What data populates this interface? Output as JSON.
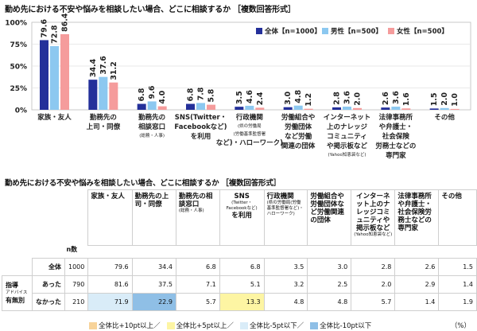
{
  "chart_data": {
    "type": "bar",
    "title": "勤め先における不安や悩みを相談したい場合、どこに相談するか ［複数回答形式］",
    "categories": [
      [
        "家族・友人"
      ],
      [
        "勤務先の",
        "上司・同僚"
      ],
      [
        "勤務先の",
        "相談窓口",
        "(総務・人事)"
      ],
      [
        "SNS(Twitter・",
        "Facebookなど)",
        "を利用"
      ],
      [
        "行政機関",
        "(県の労働局",
        "(労働基準監督署",
        "など)・ハローワーク)"
      ],
      [
        "労働組合や",
        "労働団体",
        "など労働",
        "関連の団体"
      ],
      [
        "インターネット",
        "上のナレッジ",
        "コミュニティ",
        "や掲示板など",
        "(Yahoo知恵袋など)"
      ],
      [
        "法律事務所",
        "や弁護士・",
        "社会保険",
        "労務士などの",
        "専門家"
      ],
      [
        "その他"
      ]
    ],
    "series": [
      {
        "name": "全体【n=1000】",
        "color": "#24309a",
        "values": [
          79.6,
          34.4,
          6.8,
          6.8,
          3.5,
          3.0,
          2.8,
          2.6,
          1.5
        ]
      },
      {
        "name": "男性【n=500】",
        "color": "#8cc8f0",
        "values": [
          72.8,
          37.6,
          9.6,
          7.8,
          4.6,
          4.8,
          3.6,
          3.6,
          2.0
        ]
      },
      {
        "name": "女性【n=500】",
        "color": "#f59c9c",
        "values": [
          86.4,
          31.2,
          4.0,
          5.8,
          2.4,
          1.2,
          2.0,
          1.6,
          1.0
        ]
      }
    ],
    "yticks": [
      "0%",
      "25%",
      "50%",
      "75%",
      "100%"
    ],
    "ylim": [
      0,
      100
    ],
    "legend_position": "top-right"
  },
  "table": {
    "title": "勤め先における不安や悩みを相談したい場合、どこに相談するか ［複数回答形式］",
    "n_label": "n数",
    "headers": [
      {
        "main": "家族・友人",
        "sub": ""
      },
      {
        "main": "勤務先の上司・同僚",
        "sub": ""
      },
      {
        "main": "勤務先の相談窓口",
        "sub": "(総務・人事)"
      },
      {
        "main": "SNS",
        "sub": "(Twitter・Facebookなど)",
        "after": "を利用"
      },
      {
        "main": "行政機関",
        "sub": "(県の労働局(労働基準監督署など)・ハローワーク)"
      },
      {
        "main": "労働組合や労働団体など労働関連の団体",
        "sub": ""
      },
      {
        "main": "インターネット上のナレッジコミュニティや掲示板など",
        "sub": "(Yahoo知恵袋など)"
      },
      {
        "main": "法律事務所や弁護士・社会保険労務士などの専門家",
        "sub": ""
      },
      {
        "main": "その他",
        "sub": ""
      }
    ],
    "rows": [
      {
        "label": "全体",
        "n": "1000",
        "values": [
          "79.6",
          "34.4",
          "6.8",
          "6.8",
          "3.5",
          "3.0",
          "2.8",
          "2.6",
          "1.5"
        ]
      },
      {
        "label": "あった",
        "n": "790",
        "values": [
          "81.6",
          "37.5",
          "7.1",
          "5.1",
          "3.2",
          "2.5",
          "2.0",
          "2.9",
          "1.4"
        ]
      },
      {
        "label": "なかった",
        "n": "210",
        "values": [
          "71.9",
          "22.9",
          "5.7",
          "13.3",
          "4.8",
          "4.8",
          "5.7",
          "1.4",
          "1.9"
        ]
      }
    ],
    "group": {
      "main": "指導",
      "sub": "アドバイス",
      "tail": "有無別"
    },
    "highlights": [
      {
        "row": 2,
        "col": 0,
        "color": "#d9ecf8"
      },
      {
        "row": 2,
        "col": 1,
        "color": "#8fbfe6"
      },
      {
        "row": 2,
        "col": 3,
        "color": "#fdf5a3"
      }
    ]
  },
  "legend": [
    {
      "label": "全体比+10pt以上／",
      "color": "#f7d39a"
    },
    {
      "label": "全体比+5pt以上／",
      "color": "#fdf5a3"
    },
    {
      "label": "全体比-5pt以下／",
      "color": "#d9ecf8"
    },
    {
      "label": "全体比-10pt以下",
      "color": "#8fbfe6"
    }
  ],
  "unit": "（%）"
}
